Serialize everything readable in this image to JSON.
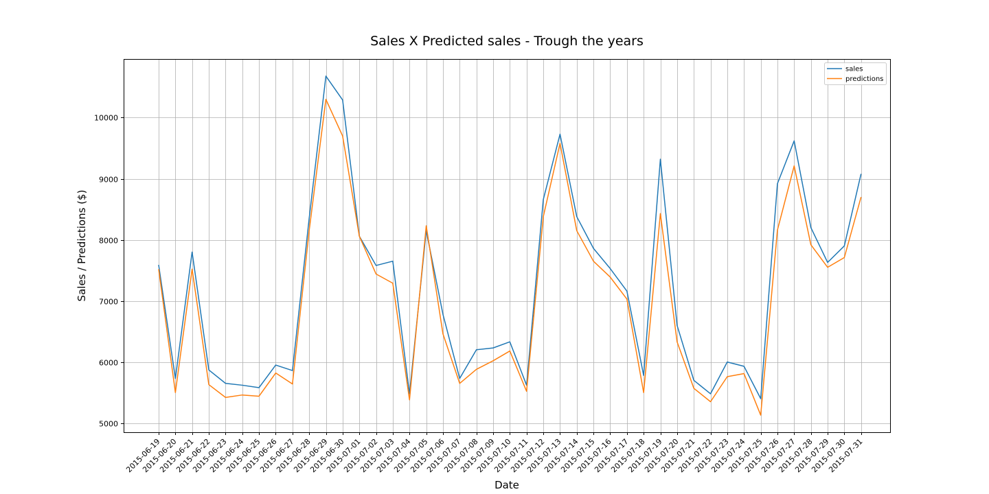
{
  "chart_data": {
    "type": "line",
    "title": "Sales X Predicted sales - Trough the years",
    "xlabel": "Date",
    "ylabel": "Sales / Predictions ($)",
    "ylim": [
      4850,
      10960
    ],
    "yticks": [
      5000,
      6000,
      7000,
      8000,
      9000,
      10000
    ],
    "grid": true,
    "legend_position": "top-right",
    "x": [
      "2015-06-19",
      "2015-06-20",
      "2015-06-21",
      "2015-06-22",
      "2015-06-23",
      "2015-06-24",
      "2015-06-25",
      "2015-06-26",
      "2015-06-27",
      "2015-06-28",
      "2015-06-29",
      "2015-06-30",
      "2015-07-01",
      "2015-07-02",
      "2015-07-03",
      "2015-07-04",
      "2015-07-05",
      "2015-07-06",
      "2015-07-07",
      "2015-07-08",
      "2015-07-09",
      "2015-07-10",
      "2015-07-11",
      "2015-07-12",
      "2015-07-13",
      "2015-07-14",
      "2015-07-15",
      "2015-07-16",
      "2015-07-17",
      "2015-07-18",
      "2015-07-19",
      "2015-07-20",
      "2015-07-21",
      "2015-07-22",
      "2015-07-23",
      "2015-07-24",
      "2015-07-25",
      "2015-07-26",
      "2015-07-27",
      "2015-07-28",
      "2015-07-29",
      "2015-07-30",
      "2015-07-31"
    ],
    "series": [
      {
        "name": "sales",
        "color": "#1f77b4",
        "values": [
          7590,
          5730,
          7800,
          5870,
          5650,
          5620,
          5580,
          5950,
          5860,
          8350,
          10680,
          10290,
          8060,
          7580,
          7650,
          5480,
          8150,
          6780,
          5730,
          6200,
          6230,
          6330,
          5620,
          8660,
          9730,
          8380,
          7860,
          7530,
          7160,
          5780,
          9320,
          6600,
          5700,
          5480,
          6000,
          5930,
          5400,
          8920,
          9620,
          8200,
          7630,
          7900,
          9080
        ]
      },
      {
        "name": "predictions",
        "color": "#ff7f0e",
        "values": [
          7520,
          5500,
          7520,
          5630,
          5420,
          5460,
          5440,
          5820,
          5640,
          8150,
          10300,
          9700,
          8060,
          7440,
          7290,
          5380,
          8230,
          6460,
          5650,
          5880,
          6020,
          6180,
          5520,
          8380,
          9580,
          8150,
          7650,
          7390,
          7030,
          5500,
          8430,
          6330,
          5570,
          5350,
          5760,
          5810,
          5130,
          8160,
          9210,
          7920,
          7550,
          7710,
          8700
        ]
      }
    ]
  }
}
